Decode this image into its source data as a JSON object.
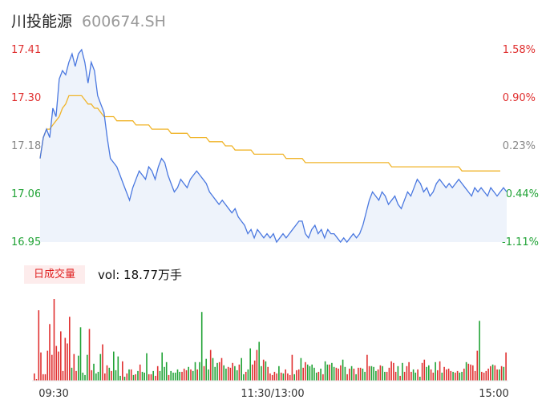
{
  "header": {
    "name": "川投能源",
    "code": "600674.SH"
  },
  "price_axis": {
    "left_labels": [
      "17.41",
      "17.30",
      "17.18",
      "17.06",
      "16.95"
    ],
    "right_labels": [
      "1.58%",
      "0.90%",
      "0.23%",
      "-0.44%",
      "-1.11%"
    ]
  },
  "volume": {
    "badge": "日成交量",
    "text": "vol: 18.77万手"
  },
  "time_axis": [
    "09:30",
    "11:30/13:00",
    "15:00"
  ],
  "colors": {
    "up": "#e03030",
    "down": "#21a336",
    "price_line": "#4a78e0",
    "avg_line": "#f0b429"
  },
  "chart_data": {
    "type": "line",
    "title": "",
    "ylim": [
      16.95,
      17.41
    ],
    "series": [
      {
        "name": "price",
        "values": [
          17.15,
          17.2,
          17.22,
          17.2,
          17.27,
          17.25,
          17.34,
          17.36,
          17.35,
          17.38,
          17.4,
          17.37,
          17.4,
          17.41,
          17.38,
          17.33,
          17.38,
          17.36,
          17.3,
          17.28,
          17.26,
          17.2,
          17.15,
          17.14,
          17.13,
          17.11,
          17.09,
          17.07,
          17.05,
          17.08,
          17.1,
          17.12,
          17.11,
          17.1,
          17.13,
          17.12,
          17.1,
          17.13,
          17.15,
          17.14,
          17.11,
          17.09,
          17.07,
          17.08,
          17.1,
          17.09,
          17.08,
          17.1,
          17.11,
          17.12,
          17.11,
          17.1,
          17.09,
          17.07,
          17.06,
          17.05,
          17.04,
          17.05,
          17.04,
          17.03,
          17.02,
          17.03,
          17.01,
          17.0,
          16.99,
          16.97,
          16.98,
          16.96,
          16.98,
          16.97,
          16.96,
          16.97,
          16.96,
          16.97,
          16.95,
          16.96,
          16.97,
          16.96,
          16.97,
          16.98,
          16.99,
          17.0,
          17.0,
          16.97,
          16.96,
          16.98,
          16.99,
          16.97,
          16.98,
          16.96,
          16.98,
          16.97,
          16.97,
          16.96,
          16.95,
          16.96,
          16.95,
          16.96,
          16.97,
          16.96,
          16.97,
          16.99,
          17.02,
          17.05,
          17.07,
          17.06,
          17.05,
          17.07,
          17.06,
          17.04,
          17.05,
          17.06,
          17.04,
          17.03,
          17.05,
          17.07,
          17.06,
          17.08,
          17.1,
          17.09,
          17.07,
          17.08,
          17.06,
          17.07,
          17.09,
          17.1,
          17.09,
          17.08,
          17.09,
          17.08,
          17.09,
          17.1,
          17.09,
          17.08,
          17.07,
          17.06,
          17.08,
          17.07,
          17.08,
          17.07,
          17.06,
          17.08,
          17.07,
          17.06,
          17.07,
          17.08,
          17.07
        ]
      },
      {
        "name": "average",
        "values": [
          17.15,
          17.2,
          17.22,
          17.22,
          17.23,
          17.24,
          17.25,
          17.27,
          17.28,
          17.3,
          17.3,
          17.3,
          17.3,
          17.3,
          17.29,
          17.28,
          17.28,
          17.27,
          17.27,
          17.26,
          17.25,
          17.25,
          17.25,
          17.25,
          17.24,
          17.24,
          17.24,
          17.24,
          17.24,
          17.24,
          17.23,
          17.23,
          17.23,
          17.23,
          17.23,
          17.22,
          17.22,
          17.22,
          17.22,
          17.22,
          17.22,
          17.21,
          17.21,
          17.21,
          17.21,
          17.21,
          17.21,
          17.2,
          17.2,
          17.2,
          17.2,
          17.2,
          17.2,
          17.19,
          17.19,
          17.19,
          17.19,
          17.19,
          17.18,
          17.18,
          17.18,
          17.17,
          17.17,
          17.17,
          17.17,
          17.17,
          17.17,
          17.16,
          17.16,
          17.16,
          17.16,
          17.16,
          17.16,
          17.16,
          17.16,
          17.16,
          17.16,
          17.15,
          17.15,
          17.15,
          17.15,
          17.15,
          17.15,
          17.14,
          17.14,
          17.14,
          17.14,
          17.14,
          17.14,
          17.14,
          17.14,
          17.14,
          17.14,
          17.14,
          17.14,
          17.14,
          17.14,
          17.14,
          17.14,
          17.14,
          17.14,
          17.14,
          17.14,
          17.14,
          17.14,
          17.14,
          17.14,
          17.14,
          17.14,
          17.14,
          17.13,
          17.13,
          17.13,
          17.13,
          17.13,
          17.13,
          17.13,
          17.13,
          17.13,
          17.13,
          17.13,
          17.13,
          17.13,
          17.13,
          17.13,
          17.13,
          17.13,
          17.13,
          17.13,
          17.13,
          17.13,
          17.13,
          17.12,
          17.12,
          17.12,
          17.12,
          17.12,
          17.12,
          17.12,
          17.12,
          17.12,
          17.12,
          17.12,
          17.12,
          17.12
        ]
      }
    ],
    "volume_series": {
      "name": "volume",
      "values": [
        9,
        2,
        87,
        35,
        8,
        8,
        37,
        70,
        32,
        101,
        43,
        36,
        61,
        12,
        53,
        46,
        79,
        16,
        33,
        12,
        31,
        66,
        10,
        7,
        32,
        64,
        13,
        21,
        9,
        11,
        33,
        45,
        9,
        19,
        16,
        12,
        36,
        13,
        30,
        6,
        24,
        5,
        9,
        14,
        14,
        7,
        8,
        12,
        20,
        11,
        10,
        34,
        8,
        8,
        12,
        6,
        18,
        12,
        35,
        17,
        23,
        7,
        12,
        10,
        10,
        14,
        11,
        11,
        15,
        13,
        17,
        14,
        12,
        23,
        14,
        23,
        85,
        18,
        27,
        14,
        38,
        28,
        17,
        22,
        23,
        28,
        19,
        15,
        17,
        16,
        22,
        18,
        13,
        20,
        28,
        8,
        11,
        14,
        40,
        20,
        25,
        38,
        48,
        18,
        26,
        24,
        17,
        9,
        7,
        11,
        9,
        18,
        10,
        9,
        14,
        9,
        7,
        32,
        8,
        13,
        14,
        28,
        16,
        23,
        20,
        18,
        20,
        16,
        10,
        11,
        15,
        8,
        24,
        20,
        20,
        22,
        17,
        16,
        15,
        19,
        26,
        17,
        8,
        15,
        18,
        15,
        8,
        16,
        16,
        15,
        11,
        32,
        18,
        18,
        17,
        12,
        14,
        19,
        18,
        11,
        11,
        16,
        24,
        22,
        11,
        18,
        6,
        22,
        11,
        18,
        23,
        11,
        14,
        10,
        14,
        5,
        22,
        26,
        17,
        19,
        14,
        10,
        23,
        13,
        24,
        10,
        17,
        14,
        15,
        12,
        11,
        10,
        12,
        10,
        11,
        15,
        23,
        21,
        20,
        19,
        12,
        37,
        74,
        11,
        10,
        12,
        15,
        18,
        20,
        19,
        14,
        14,
        18,
        17,
        35
      ],
      "directions": [
        "u",
        "u",
        "u",
        "u",
        "u",
        "u",
        "u",
        "u",
        "u",
        "u",
        "u",
        "u",
        "u",
        "u",
        "u",
        "u",
        "u",
        "d",
        "u",
        "u",
        "d",
        "d",
        "d",
        "d",
        "d",
        "u",
        "u",
        "d",
        "d",
        "d",
        "d",
        "u",
        "u",
        "u",
        "d",
        "u",
        "d",
        "d",
        "d",
        "d",
        "u",
        "d",
        "u",
        "d",
        "u",
        "d",
        "u",
        "d",
        "u",
        "d",
        "d",
        "d",
        "u",
        "u",
        "d",
        "u",
        "u",
        "d",
        "d",
        "d",
        "d",
        "u",
        "d",
        "d",
        "d",
        "d",
        "d",
        "u",
        "u",
        "u",
        "d",
        "u",
        "d",
        "d",
        "u",
        "d",
        "d",
        "u",
        "d",
        "d",
        "u",
        "d",
        "d",
        "d",
        "u",
        "u",
        "d",
        "d",
        "u",
        "u",
        "u",
        "d",
        "d",
        "u",
        "d",
        "d",
        "u",
        "d",
        "d",
        "u",
        "u",
        "u",
        "d",
        "d",
        "u",
        "d",
        "u",
        "u",
        "u",
        "u",
        "u",
        "d",
        "u",
        "d",
        "u",
        "u",
        "u",
        "u",
        "d",
        "u",
        "u",
        "d",
        "u",
        "u",
        "d",
        "d",
        "d",
        "d",
        "d",
        "u",
        "d",
        "u",
        "d",
        "d",
        "u",
        "d",
        "d",
        "u",
        "u",
        "u",
        "d",
        "d",
        "u",
        "u",
        "d",
        "u",
        "d",
        "u",
        "u",
        "d",
        "d",
        "u",
        "u",
        "d",
        "d",
        "d",
        "u",
        "u",
        "d",
        "d",
        "u",
        "u",
        "u",
        "u",
        "u",
        "d",
        "u",
        "d",
        "u",
        "u",
        "u",
        "u",
        "d",
        "d",
        "u",
        "d",
        "u",
        "u",
        "d",
        "d",
        "u",
        "u",
        "d",
        "u",
        "u",
        "d",
        "u",
        "u",
        "u",
        "u",
        "d",
        "u",
        "u",
        "d",
        "d",
        "u",
        "d",
        "u",
        "u",
        "u",
        "u",
        "u",
        "d",
        "u",
        "u",
        "u",
        "u",
        "u",
        "d",
        "u",
        "u",
        "d",
        "u",
        "d",
        "u"
      ]
    }
  }
}
